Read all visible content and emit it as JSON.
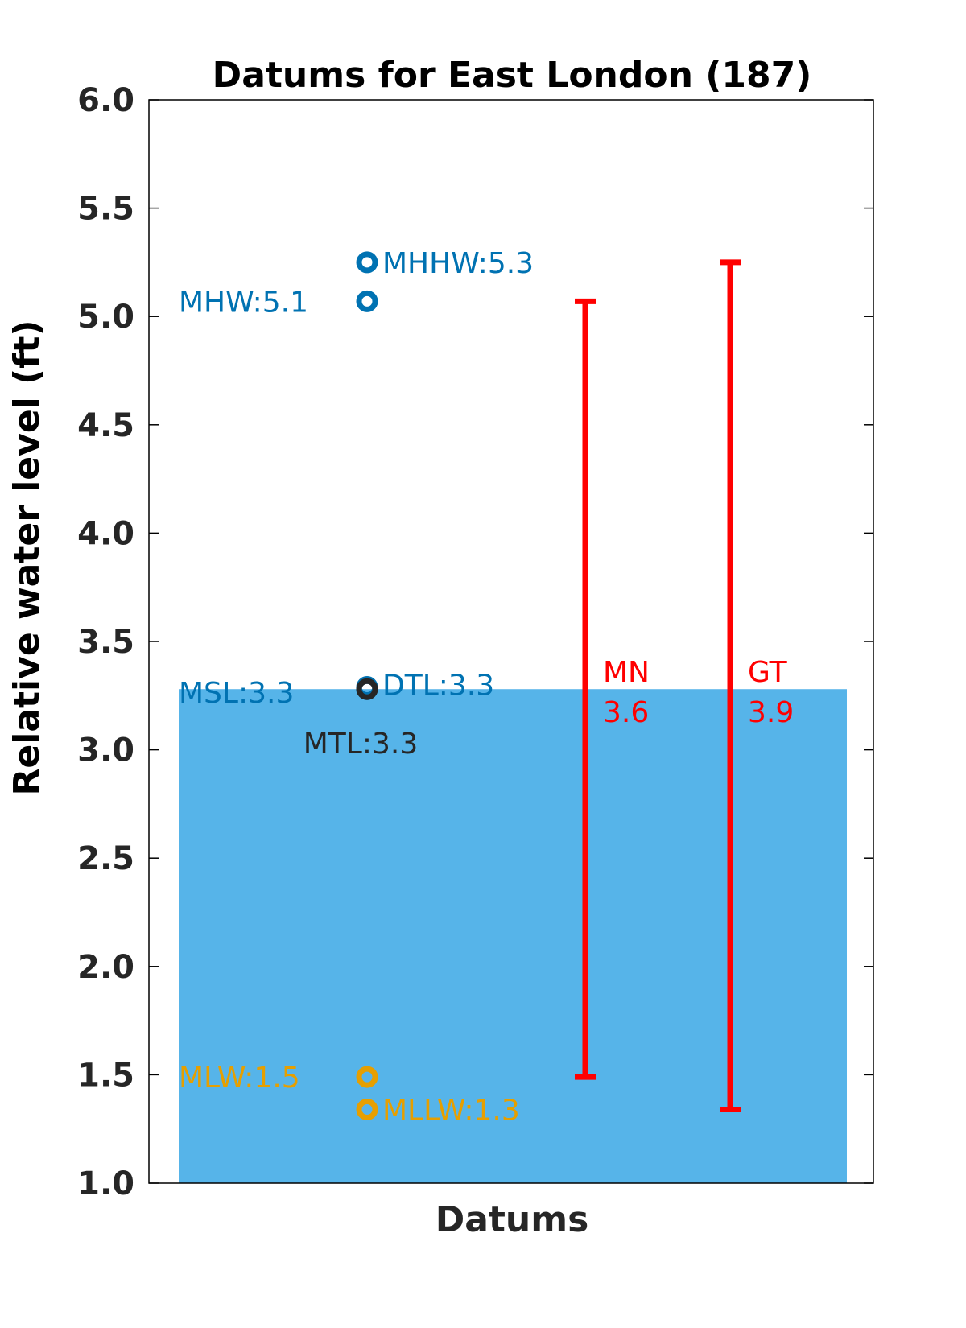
{
  "chart_data": {
    "type": "scatter",
    "title": "Datums for East London (187)",
    "xlabel": "Datums",
    "ylabel": "Relative water level (ft)",
    "ylim": [
      1.0,
      6.0
    ],
    "yticks": [
      "1.0",
      "1.5",
      "2.0",
      "2.5",
      "3.0",
      "3.5",
      "4.0",
      "4.5",
      "5.0",
      "5.5",
      "6.0"
    ],
    "grid": false,
    "msl_bar": {
      "value": 3.28,
      "color": "#56B4E9"
    },
    "datums": [
      {
        "name": "MHHW",
        "label": "MHHW:5.3",
        "value": 5.25,
        "color": "#0072B2",
        "label_side": "right"
      },
      {
        "name": "MHW",
        "label": "MHW:5.1",
        "value": 5.07,
        "color": "#0072B2",
        "label_side": "left"
      },
      {
        "name": "DTL",
        "label": "DTL:3.3",
        "value": 3.29,
        "color": "#0072B2",
        "label_side": "right"
      },
      {
        "name": "MSL",
        "label": "MSL:3.3",
        "value": 3.28,
        "color": "#0072B2",
        "label_side": "left"
      },
      {
        "name": "MTL",
        "label": "MTL:3.3",
        "value": 3.28,
        "color": "#262626",
        "label_side": "below"
      },
      {
        "name": "MLW",
        "label": "MLW:1.5",
        "value": 1.49,
        "color": "#E69F00",
        "label_side": "left"
      },
      {
        "name": "MLLW",
        "label": "MLLW:1.3",
        "value": 1.34,
        "color": "#E69F00",
        "label_side": "right"
      }
    ],
    "ranges": [
      {
        "name": "MN",
        "value_label": "3.6",
        "low": 1.49,
        "high": 5.07,
        "color": "#FF0000"
      },
      {
        "name": "GT",
        "value_label": "3.9",
        "low": 1.34,
        "high": 5.25,
        "color": "#FF0000"
      }
    ]
  }
}
